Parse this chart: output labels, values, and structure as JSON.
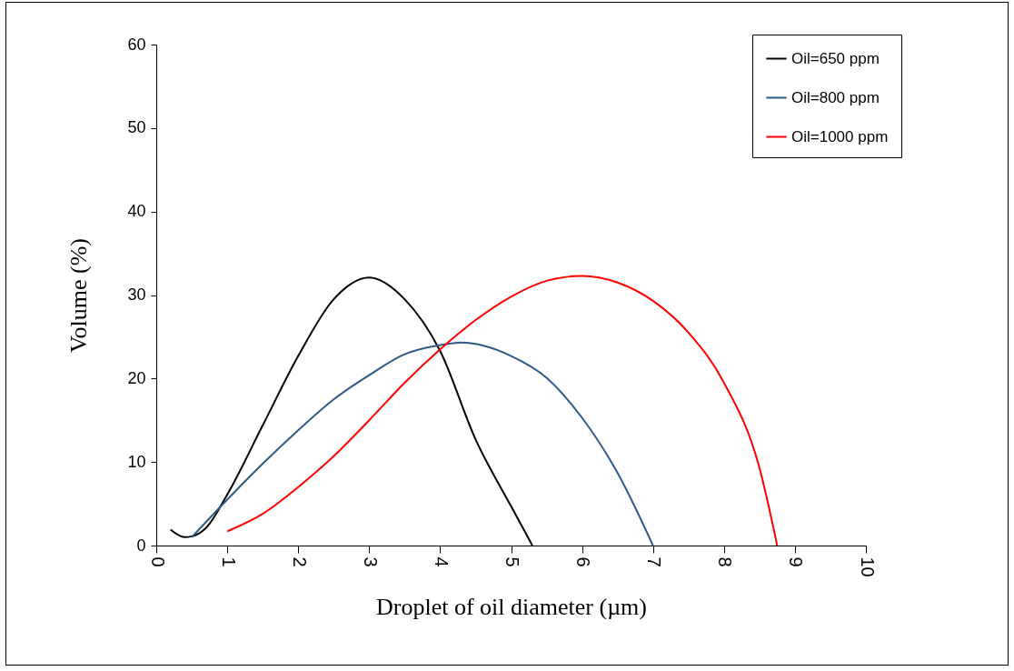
{
  "chart_data": {
    "type": "line",
    "xlabel": "Droplet of oil diameter (µm)",
    "ylabel": "Volume (%)",
    "xlim": [
      0,
      10
    ],
    "xticks": [
      0,
      1,
      2,
      3,
      4,
      5,
      6,
      7,
      8,
      9,
      10
    ],
    "ylim": [
      0,
      60
    ],
    "yticks": [
      0,
      10,
      20,
      30,
      40,
      50,
      60
    ],
    "grid": false,
    "legend": "top right",
    "marker": "none",
    "line_style": "solid",
    "series": [
      {
        "name": "Oil=650 ppm",
        "color": "#000000",
        "x": [
          0.2,
          0.4,
          0.5,
          0.7,
          1.0,
          1.5,
          2.0,
          2.5,
          3.0,
          3.5,
          4.0,
          4.5,
          5.0,
          5.3
        ],
        "values": [
          1.9,
          1.0,
          1.1,
          2.1,
          6.1,
          14.4,
          22.7,
          29.5,
          32.1,
          29.5,
          23.3,
          12.7,
          4.7,
          0
        ]
      },
      {
        "name": "Oil=800 ppm",
        "color": "#2e5a88",
        "x": [
          0.5,
          1.0,
          1.5,
          2.0,
          2.5,
          3.0,
          3.5,
          4.0,
          4.3,
          5.0,
          5.5,
          6.0,
          6.5,
          7.0
        ],
        "values": [
          1.0,
          5.5,
          9.8,
          13.8,
          17.5,
          20.4,
          22.9,
          24.0,
          24.3,
          22.7,
          20.1,
          15.3,
          8.7,
          0
        ]
      },
      {
        "name": "Oil=1000 ppm",
        "color": "#ff0000",
        "x": [
          1.0,
          1.5,
          2.0,
          2.5,
          3.0,
          3.5,
          4.0,
          4.5,
          5.0,
          5.5,
          6.0,
          6.5,
          7.0,
          7.5,
          8.0,
          8.5,
          8.75
        ],
        "values": [
          1.7,
          3.8,
          7.0,
          10.7,
          15.0,
          19.5,
          23.5,
          27.0,
          29.8,
          31.7,
          32.3,
          31.5,
          29.3,
          25.5,
          19.5,
          9.3,
          0
        ]
      }
    ]
  }
}
